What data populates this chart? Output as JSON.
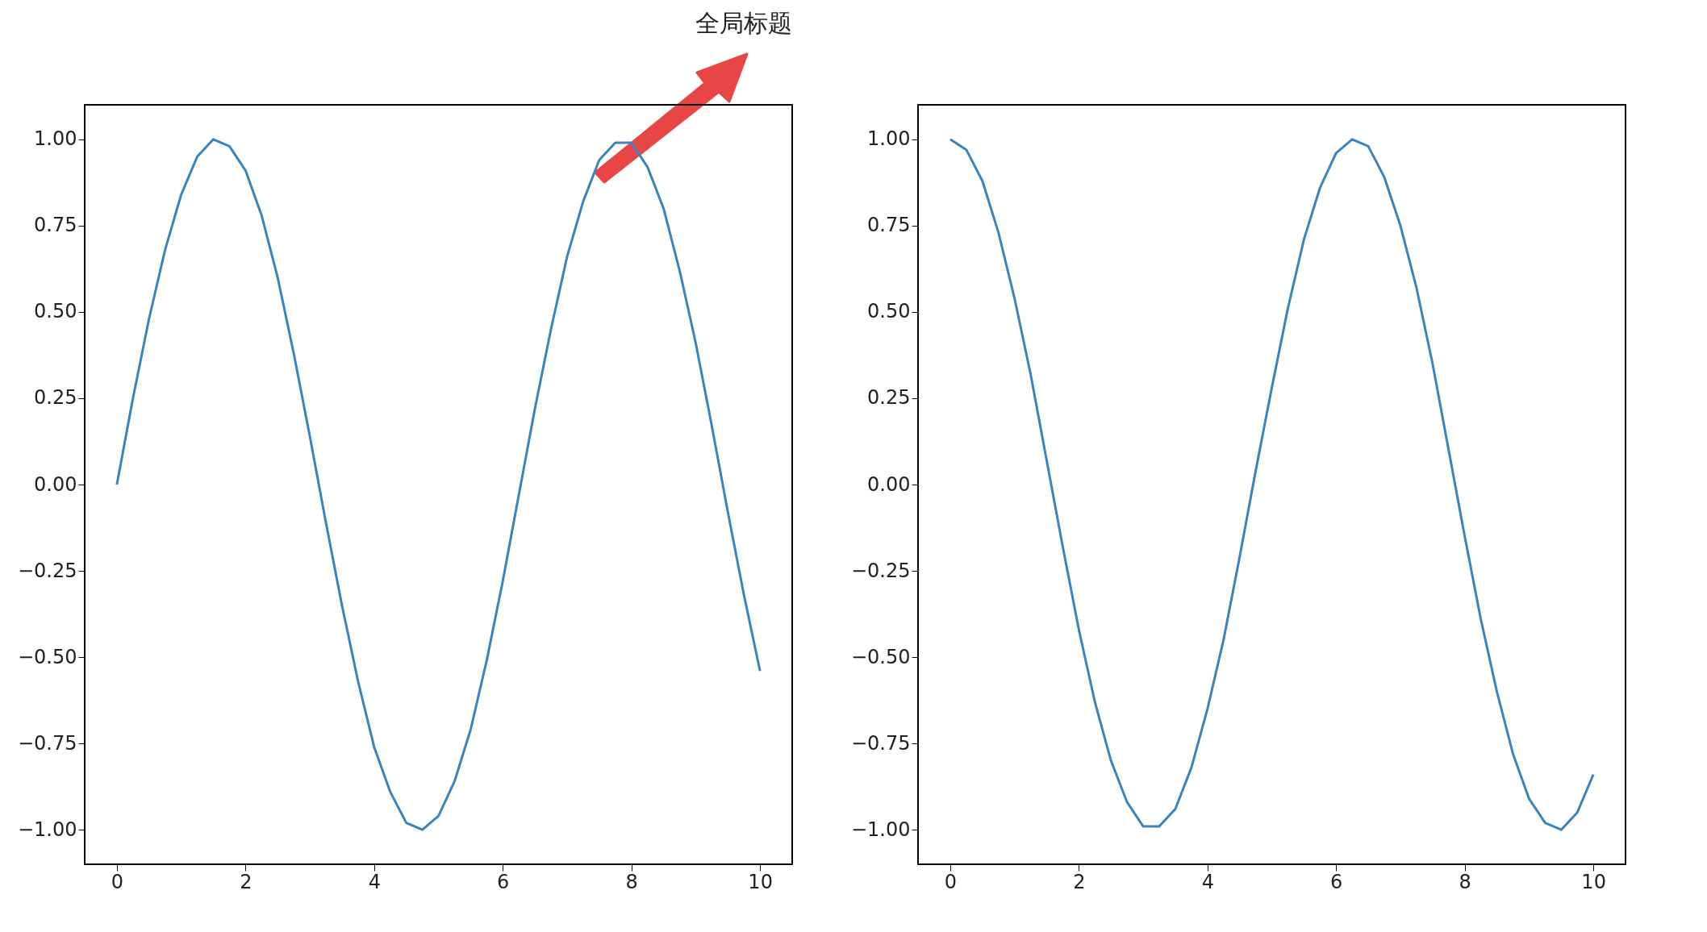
{
  "chart_data": [
    {
      "type": "line",
      "title": "全局标题",
      "x": [
        0,
        0.25,
        0.5,
        0.75,
        1,
        1.25,
        1.5,
        1.75,
        2,
        2.25,
        2.5,
        2.75,
        3,
        3.25,
        3.5,
        3.75,
        4,
        4.25,
        4.5,
        4.75,
        5,
        5.25,
        5.5,
        5.75,
        6,
        6.25,
        6.5,
        6.75,
        7,
        7.25,
        7.5,
        7.75,
        8,
        8.25,
        8.5,
        8.75,
        9,
        9.25,
        9.5,
        9.75,
        10
      ],
      "series": [
        {
          "color": "#3a84c0",
          "values": [
            0.0,
            0.25,
            0.48,
            0.68,
            0.84,
            0.95,
            1.0,
            0.98,
            0.91,
            0.78,
            0.6,
            0.38,
            0.14,
            -0.11,
            -0.35,
            -0.57,
            -0.76,
            -0.89,
            -0.98,
            -1.0,
            -0.96,
            -0.86,
            -0.71,
            -0.51,
            -0.28,
            -0.03,
            0.22,
            0.45,
            0.66,
            0.82,
            0.94,
            0.99,
            0.99,
            0.92,
            0.8,
            0.62,
            0.41,
            0.17,
            -0.08,
            -0.32,
            -0.54
          ]
        }
      ],
      "xlim": [
        -0.5,
        10.5
      ],
      "ylim": [
        -1.1,
        1.1
      ],
      "xticks": [
        0,
        2,
        4,
        6,
        8,
        10
      ],
      "line_style": "solid",
      "yticks": [
        {
          "value": -1,
          "label": "−1.00"
        },
        {
          "value": -0.75,
          "label": "−0.75"
        },
        {
          "value": -0.5,
          "label": "−0.50"
        },
        {
          "value": -0.25,
          "label": "−0.25"
        },
        {
          "value": 0,
          "label": "0.00"
        },
        {
          "value": 0.25,
          "label": "0.25"
        },
        {
          "value": 0.5,
          "label": "0.50"
        },
        {
          "value": 0.75,
          "label": "0.75"
        },
        {
          "value": 1,
          "label": "1.00"
        }
      ]
    },
    {
      "type": "line",
      "x": [
        0,
        0.25,
        0.5,
        0.75,
        1,
        1.25,
        1.5,
        1.75,
        2,
        2.25,
        2.5,
        2.75,
        3,
        3.25,
        3.5,
        3.75,
        4,
        4.25,
        4.5,
        4.75,
        5,
        5.25,
        5.5,
        5.75,
        6,
        6.25,
        6.5,
        6.75,
        7,
        7.25,
        7.5,
        7.75,
        8,
        8.25,
        8.5,
        8.75,
        9,
        9.25,
        9.5,
        9.75,
        10
      ],
      "series": [
        {
          "color": "#3a84c0",
          "values": [
            1.0,
            0.97,
            0.88,
            0.73,
            0.54,
            0.32,
            0.07,
            -0.18,
            -0.42,
            -0.63,
            -0.8,
            -0.92,
            -0.99,
            -0.99,
            -0.94,
            -0.82,
            -0.65,
            -0.45,
            -0.21,
            0.04,
            0.28,
            0.51,
            0.71,
            0.86,
            0.96,
            1.0,
            0.98,
            0.89,
            0.75,
            0.57,
            0.35,
            0.1,
            -0.15,
            -0.39,
            -0.6,
            -0.78,
            -0.91,
            -0.98,
            -1.0,
            -0.95,
            -0.84
          ]
        }
      ],
      "xlim": [
        -0.5,
        10.5
      ],
      "ylim": [
        -1.1,
        1.1
      ],
      "xticks": [
        0,
        2,
        4,
        6,
        8,
        10
      ],
      "line_style": "solid",
      "yticks": [
        {
          "value": -1,
          "label": "−1.00"
        },
        {
          "value": -0.75,
          "label": "−0.75"
        },
        {
          "value": -0.5,
          "label": "−0.50"
        },
        {
          "value": -0.25,
          "label": "−0.25"
        },
        {
          "value": 0,
          "label": "0.00"
        },
        {
          "value": 0.25,
          "label": "0.25"
        },
        {
          "value": 0.5,
          "label": "0.50"
        },
        {
          "value": 0.75,
          "label": "0.75"
        },
        {
          "value": 1,
          "label": "1.00"
        }
      ]
    }
  ]
}
